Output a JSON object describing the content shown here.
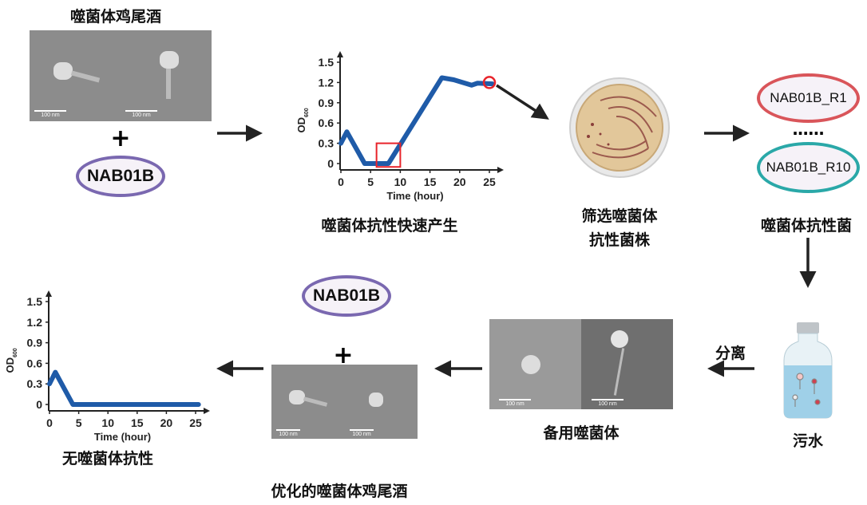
{
  "top_left": {
    "title": "噬菌体鸡尾酒",
    "scale_bar_1": "100 nm",
    "scale_bar_2": "100 nm",
    "plus": "+",
    "strain": "NAB01B"
  },
  "resistance_chart_caption": "噬菌体抗性快速产生",
  "plate_caption_line1": "筛选噬菌体",
  "plate_caption_line2": "抗性菌株",
  "resistant_strains": {
    "first": "NAB01B_R1",
    "dots": "......",
    "last": "NAB01B_R10",
    "caption": "噬菌体抗性菌"
  },
  "sewage": {
    "caption": "污水",
    "arrow_label": "分离"
  },
  "backup_phage": {
    "caption": "备用噬菌体",
    "scale_bar_1": "100 nm",
    "scale_bar_2": "100 nm"
  },
  "optimized": {
    "caption": "优化的噬菌体鸡尾酒",
    "strain": "NAB01B",
    "plus": "+",
    "scale_bar_1": "100 nm",
    "scale_bar_2": "100 nm"
  },
  "no_resistance_caption": "无噬菌体抗性",
  "colors": {
    "curve": "#1f5ba8",
    "highlight": "#e8232a",
    "r1_cell": "#d9555a",
    "r10_cell": "#2aa8a8",
    "nab01b_cell": "#7a68b0"
  },
  "chart_data": [
    {
      "type": "line",
      "xlabel": "Time (hour)",
      "ylabel": "OD",
      "ylabel_sub": "600",
      "xlim": [
        0,
        25
      ],
      "ylim": [
        0,
        1.5
      ],
      "xticks": [
        "0",
        "5",
        "10",
        "15",
        "20",
        "25"
      ],
      "yticks": [
        "0",
        "0.3",
        "0.6",
        "0.9",
        "1.2",
        "1.5"
      ],
      "series": [
        {
          "x": [
            0,
            1,
            4,
            8,
            17,
            19,
            22,
            23,
            25.5
          ],
          "y": [
            0.3,
            0.47,
            0,
            0,
            1.27,
            1.24,
            1.16,
            1.19,
            1.18
          ]
        }
      ],
      "annotations": [
        {
          "shape": "box",
          "x": [
            6,
            10
          ],
          "y": [
            -0.05,
            0.3
          ]
        },
        {
          "shape": "circle",
          "x": 25,
          "y": 1.2
        }
      ]
    },
    {
      "type": "line",
      "xlabel": "Time (hour)",
      "ylabel": "OD",
      "ylabel_sub": "600",
      "xlim": [
        0,
        25
      ],
      "ylim": [
        0,
        1.5
      ],
      "xticks": [
        "0",
        "5",
        "10",
        "15",
        "20",
        "25"
      ],
      "yticks": [
        "0",
        "0.3",
        "0.6",
        "0.9",
        "1.2",
        "1.5"
      ],
      "series": [
        {
          "x": [
            0,
            1,
            4,
            25.5
          ],
          "y": [
            0.3,
            0.47,
            0,
            0
          ]
        }
      ]
    }
  ]
}
